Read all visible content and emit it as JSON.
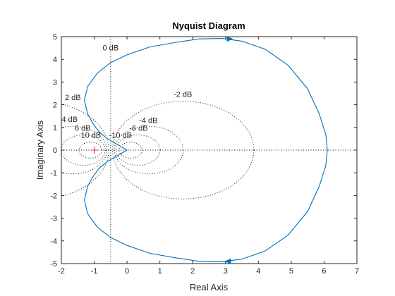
{
  "chart_data": {
    "type": "line",
    "title": "Nyquist Diagram",
    "xlabel": "Real Axis",
    "ylabel": "Imaginary Axis",
    "xlim": [
      -2,
      7
    ],
    "ylim": [
      -5,
      5
    ],
    "xticks": [
      -2,
      -1,
      0,
      1,
      2,
      3,
      4,
      5,
      6,
      7
    ],
    "yticks": [
      -5,
      -4,
      -3,
      -2,
      -1,
      0,
      1,
      2,
      3,
      4,
      5
    ],
    "grid": "M-circles (dB contours)",
    "critical_point": {
      "x": -1,
      "y": 0,
      "marker": "+",
      "color": "#d62728"
    },
    "series": [
      {
        "color": "#0072bd",
        "points": [
          [
            0,
            0
          ],
          [
            -0.3,
            0.25
          ],
          [
            -0.6,
            0.5
          ],
          [
            -0.85,
            0.8
          ],
          [
            -1.05,
            1.2
          ],
          [
            -1.2,
            1.6
          ],
          [
            -1.3,
            2.2
          ],
          [
            -1.2,
            2.8
          ],
          [
            -0.9,
            3.4
          ],
          [
            -0.5,
            3.85
          ],
          [
            0,
            4.2
          ],
          [
            0.7,
            4.55
          ],
          [
            1.5,
            4.75
          ],
          [
            2.2,
            4.9
          ],
          [
            2.9,
            4.92
          ],
          [
            3.5,
            4.8
          ],
          [
            4.2,
            4.45
          ],
          [
            4.9,
            3.75
          ],
          [
            5.5,
            2.7
          ],
          [
            5.85,
            1.6
          ],
          [
            6.05,
            0.7
          ],
          [
            6.1,
            0
          ]
        ],
        "mirror_conjugate": true,
        "arrow_at": [
          [
            3.1,
            4.9
          ],
          [
            3.1,
            -4.9
          ]
        ]
      }
    ],
    "contours": [
      {
        "label": "0 dB",
        "db": 0,
        "label_at": [
          -0.5,
          4.4
        ]
      },
      {
        "label": "2 dB",
        "db": 2,
        "label_at": [
          -1.65,
          2.2
        ]
      },
      {
        "label": "4 dB",
        "db": 4,
        "label_at": [
          -1.75,
          1.25
        ]
      },
      {
        "label": "6 dB",
        "db": 6,
        "label_at": [
          -1.35,
          0.85
        ]
      },
      {
        "label": "10 dB",
        "db": 10,
        "label_at": [
          -1.1,
          0.55
        ]
      },
      {
        "label": "-2 dB",
        "db": -2,
        "label_at": [
          1.7,
          2.35
        ]
      },
      {
        "label": "-4 dB",
        "db": -4,
        "label_at": [
          0.65,
          1.2
        ]
      },
      {
        "label": "-6 dB",
        "db": -6,
        "label_at": [
          0.35,
          0.85
        ]
      },
      {
        "label": "-10 dB",
        "db": -10,
        "label_at": [
          -0.2,
          0.55
        ]
      }
    ]
  }
}
